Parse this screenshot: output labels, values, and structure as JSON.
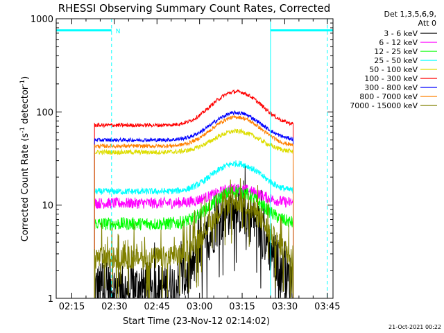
{
  "chart_data": {
    "type": "line",
    "title": "RHESSI Observing Summary Count Rates, Corrected",
    "xlabel": "Start Time (23-Nov-12 02:14:02)",
    "ylabel": "Corrected Count Rate (s",
    "ylabel_exp1": "-1",
    "ylabel_mid": " detector",
    "ylabel_exp2": "-1",
    "ylabel_end": ")",
    "y_scale": "log",
    "ylim": [
      1,
      1000
    ],
    "y_ticks": [
      1,
      10,
      100,
      1000
    ],
    "y_tick_labels": [
      "1",
      "10",
      "100",
      "1000"
    ],
    "xlim_minutes": [
      -5.5,
      92
    ],
    "x_ticks_minutes": [
      0,
      15,
      30,
      45,
      60,
      75,
      90
    ],
    "x_tick_labels": [
      "02:15",
      "02:30",
      "02:45",
      "03:00",
      "03:15",
      "03:30",
      "03:45"
    ],
    "data_start_min": 8,
    "data_end_min": 78,
    "legend_header": [
      "Det 1,3,5,6,9,",
      "Att 0"
    ],
    "legend_position": "top-right, outside plot",
    "series": [
      {
        "name": "3 - 6 keV",
        "color": "#000000",
        "base": 1.3,
        "peak": 9,
        "noise": 0.55,
        "peak_time_min": 58
      },
      {
        "name": "6 - 12 keV",
        "color": "#ff00ff",
        "base": 10.5,
        "peak": 15,
        "noise": 0.12,
        "peak_time_min": 58
      },
      {
        "name": "12 - 25 keV",
        "color": "#00ff00",
        "base": 6.3,
        "peak": 14,
        "noise": 0.14,
        "peak_time_min": 58
      },
      {
        "name": "25 - 50 keV",
        "color": "#00ffff",
        "base": 14,
        "peak": 28,
        "noise": 0.07,
        "peak_time_min": 58
      },
      {
        "name": "50 - 100 keV",
        "color": "#dddd00",
        "base": 37,
        "peak": 62,
        "noise": 0.05,
        "peak_time_min": 58
      },
      {
        "name": "100 - 300 keV",
        "color": "#ff0000",
        "base": 72,
        "peak": 165,
        "noise": 0.04,
        "peak_time_min": 58
      },
      {
        "name": "300 - 800 keV",
        "color": "#0000ff",
        "base": 50,
        "peak": 98,
        "noise": 0.04,
        "peak_time_min": 58
      },
      {
        "name": "800 - 7000 keV",
        "color": "#ff8000",
        "base": 43,
        "peak": 88,
        "noise": 0.04,
        "peak_time_min": 58
      },
      {
        "name": "7000 - 15000 keV",
        "color": "#808000",
        "base": 2.7,
        "peak": 11,
        "noise": 0.25,
        "peak_time_min": 58
      }
    ],
    "night_intervals_minutes": [
      [
        -5.5,
        14
      ],
      [
        70,
        92
      ]
    ],
    "night_level": 750,
    "night_color": "#00ffff",
    "night_label": "N",
    "dashed_markers_minutes": [
      14,
      70,
      90
    ],
    "footer_date": "21-Oct-2021 00:22"
  }
}
